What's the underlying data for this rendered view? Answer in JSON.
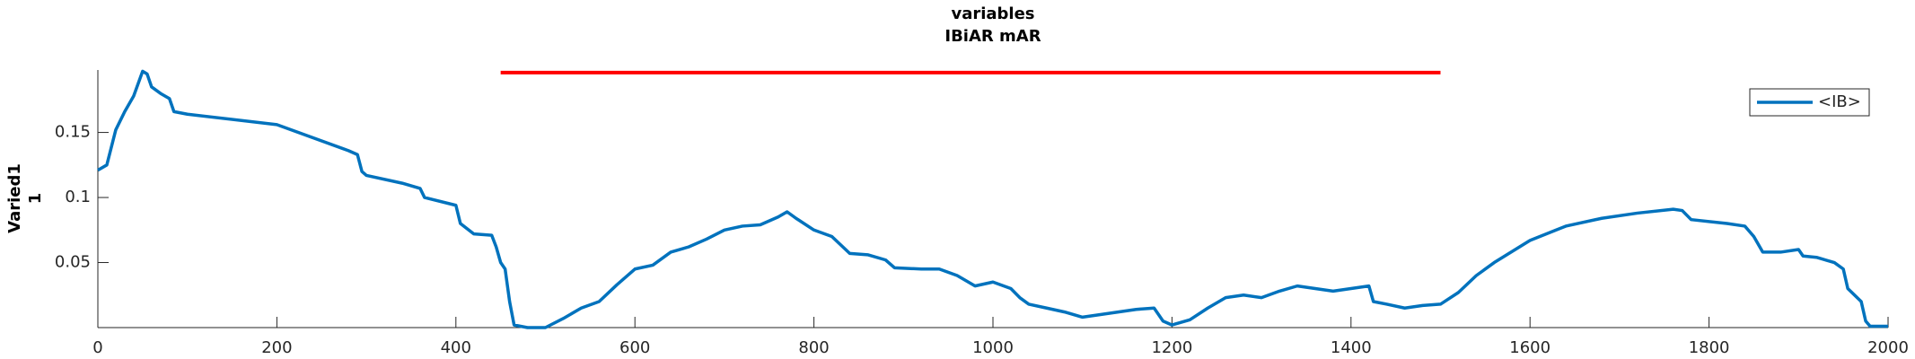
{
  "chart_data": {
    "type": "line",
    "title": [
      "variables",
      "IBiAR mAR"
    ],
    "ylabel": [
      "Varied1",
      "1"
    ],
    "xlim": [
      0,
      2000
    ],
    "xticks": [
      0,
      200,
      400,
      600,
      800,
      1000,
      1200,
      1400,
      1600,
      1800,
      2000
    ],
    "ylim": [
      0,
      0.198
    ],
    "yticks": [
      0.05,
      0.1,
      0.15
    ],
    "grid": false,
    "legend": "northeast",
    "hline": {
      "x": [
        450,
        1500
      ],
      "y": 0.196,
      "color": "#ff0000"
    },
    "x": [
      0,
      10,
      20,
      30,
      40,
      50,
      55,
      60,
      70,
      80,
      85,
      100,
      200,
      280,
      290,
      295,
      300,
      340,
      360,
      365,
      400,
      405,
      420,
      440,
      445,
      450,
      455,
      460,
      465,
      480,
      500,
      520,
      540,
      560,
      580,
      600,
      620,
      640,
      660,
      680,
      700,
      720,
      740,
      760,
      770,
      780,
      800,
      820,
      840,
      860,
      880,
      890,
      920,
      940,
      960,
      980,
      1000,
      1020,
      1030,
      1040,
      1060,
      1080,
      1100,
      1120,
      1140,
      1160,
      1180,
      1190,
      1200,
      1220,
      1240,
      1260,
      1280,
      1300,
      1320,
      1340,
      1360,
      1380,
      1400,
      1420,
      1425,
      1440,
      1460,
      1480,
      1500,
      1520,
      1540,
      1560,
      1600,
      1640,
      1680,
      1720,
      1760,
      1770,
      1780,
      1820,
      1840,
      1850,
      1860,
      1880,
      1900,
      1905,
      1920,
      1940,
      1950,
      1955,
      1970,
      1975,
      1980,
      2000
    ],
    "series": [
      {
        "name": "<IB>",
        "color": "#0072bd",
        "values": [
          0.121,
          0.125,
          0.152,
          0.166,
          0.178,
          0.197,
          0.195,
          0.185,
          0.18,
          0.176,
          0.166,
          0.164,
          0.156,
          0.136,
          0.133,
          0.12,
          0.117,
          0.111,
          0.107,
          0.1,
          0.094,
          0.08,
          0.072,
          0.071,
          0.062,
          0.05,
          0.045,
          0.02,
          0.002,
          0,
          0,
          0.007,
          0.015,
          0.02,
          0.033,
          0.045,
          0.048,
          0.058,
          0.062,
          0.068,
          0.075,
          0.078,
          0.079,
          0.085,
          0.089,
          0.084,
          0.075,
          0.07,
          0.057,
          0.056,
          0.052,
          0.046,
          0.045,
          0.045,
          0.04,
          0.032,
          0.035,
          0.03,
          0.023,
          0.018,
          0.015,
          0.012,
          0.008,
          0.01,
          0.012,
          0.014,
          0.015,
          0.005,
          0.002,
          0.006,
          0.015,
          0.023,
          0.025,
          0.023,
          0.028,
          0.032,
          0.03,
          0.028,
          0.03,
          0.032,
          0.02,
          0.018,
          0.015,
          0.017,
          0.018,
          0.027,
          0.04,
          0.05,
          0.067,
          0.078,
          0.084,
          0.088,
          0.091,
          0.09,
          0.083,
          0.08,
          0.078,
          0.07,
          0.058,
          0.058,
          0.06,
          0.055,
          0.054,
          0.05,
          0.045,
          0.03,
          0.02,
          0.005,
          0.001,
          0.001
        ]
      }
    ]
  }
}
